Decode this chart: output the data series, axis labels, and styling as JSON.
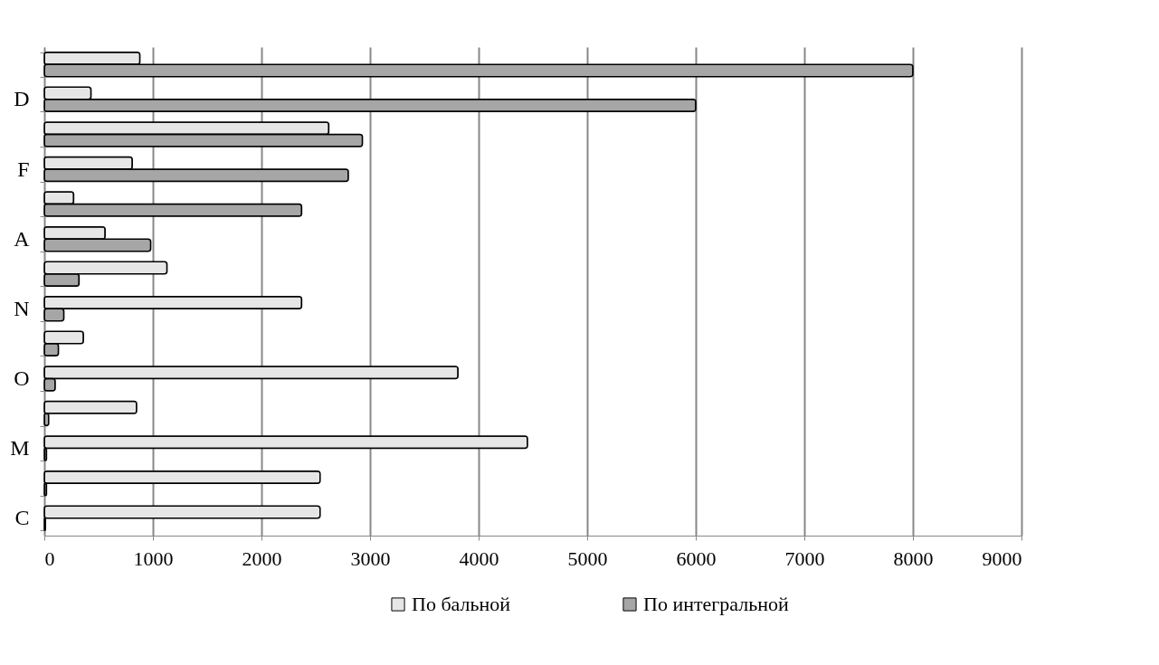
{
  "chart_data": {
    "type": "bar",
    "orientation": "horizontal",
    "categories": [
      null,
      "D",
      null,
      "F",
      null,
      "A",
      null,
      "N",
      null,
      "O",
      null,
      "M",
      null,
      "C"
    ],
    "series": [
      {
        "name": "По бальной",
        "color": "#e6e6e6",
        "values": [
          880,
          430,
          2620,
          810,
          270,
          560,
          1130,
          2370,
          360,
          3810,
          850,
          4450,
          2540,
          2540
        ]
      },
      {
        "name": "По интегральной",
        "color": "#a6a6a6",
        "values": [
          8000,
          6000,
          2930,
          2800,
          2370,
          980,
          320,
          180,
          130,
          100,
          40,
          20,
          20,
          10
        ]
      }
    ],
    "xlim": [
      0,
      9000
    ],
    "xticks": [
      0,
      1000,
      2000,
      3000,
      4000,
      5000,
      6000,
      7000,
      8000,
      9000
    ],
    "grid": "x",
    "legend": "bottom"
  }
}
